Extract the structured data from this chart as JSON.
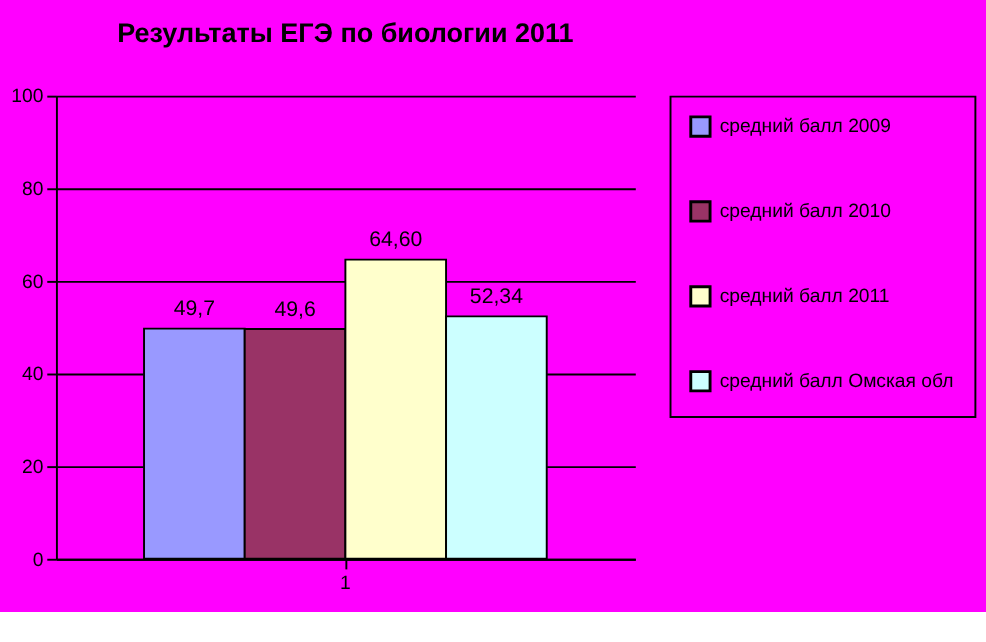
{
  "chart_data": {
    "type": "bar",
    "title": "Результаты ЕГЭ по биологии 2011",
    "categories": [
      "1"
    ],
    "series": [
      {
        "name": "средний балл 2009",
        "color": "#9999ff",
        "values": [
          49.7
        ],
        "value_labels": [
          "49,7"
        ]
      },
      {
        "name": "средний балл 2010",
        "color": "#993366",
        "values": [
          49.6
        ],
        "value_labels": [
          "49,6"
        ]
      },
      {
        "name": "средний балл 2011",
        "color": "#ffffcc",
        "values": [
          64.6
        ],
        "value_labels": [
          "64,60"
        ]
      },
      {
        "name": "средний балл Омская обл",
        "color": "#ccffff",
        "values": [
          52.34
        ],
        "value_labels": [
          "52,34"
        ]
      }
    ],
    "ylim": [
      0,
      100
    ],
    "yticks": [
      0,
      20,
      40,
      60,
      80,
      100
    ],
    "grid": "y",
    "legend": "right"
  }
}
